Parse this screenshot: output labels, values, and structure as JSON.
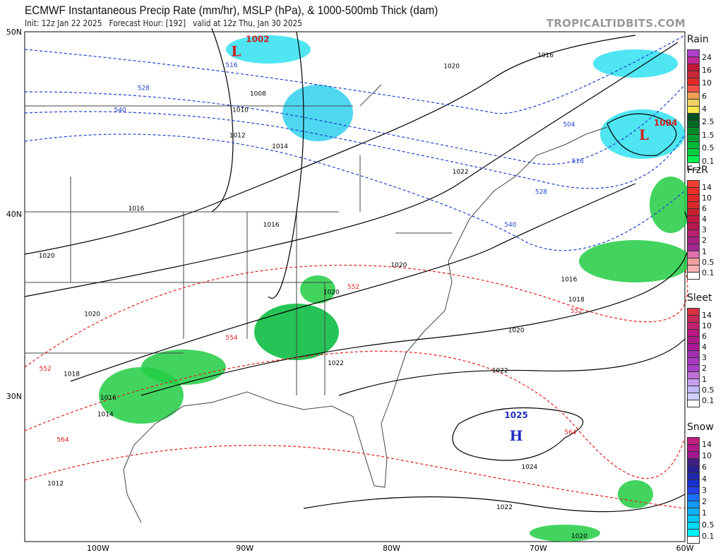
{
  "header": {
    "title": "ECMWF Instantaneous Precip Rate (mm/hr), MSLP (hPa), & 1000-500mb Thick (dam)",
    "subtitle": "Init: 12z Jan 22 2025   Forecast Hour: [192]   valid at 12z Thu, Jan 30 2025",
    "brand": "TROPICALTIDBITS.COM"
  },
  "map": {
    "lon_range": [
      -105,
      -60
    ],
    "lat_range": [
      22,
      50
    ],
    "lon_labels": [
      {
        "lon": -100,
        "text": "100W"
      },
      {
        "lon": -90,
        "text": "90W"
      },
      {
        "lon": -80,
        "text": "80W"
      },
      {
        "lon": -70,
        "text": "70W"
      },
      {
        "lon": -60,
        "text": "60W"
      }
    ],
    "lat_labels": [
      {
        "lat": 50,
        "text": "50N"
      },
      {
        "lat": 40,
        "text": "40N"
      },
      {
        "lat": 30,
        "text": "30N"
      }
    ],
    "pressure_centers": [
      {
        "type": "L",
        "value": "1002",
        "lon": -90.6,
        "lat": 48.9,
        "color": "#d02020"
      },
      {
        "type": "L",
        "value": "1004",
        "lon": -62.8,
        "lat": 44.3,
        "color": "#d02020"
      },
      {
        "type": "H",
        "value": "1025",
        "lon": -71.5,
        "lat": 27.8,
        "color": "#2030c0"
      }
    ],
    "isobar_labels": [
      {
        "text": "1008",
        "lon": -89.1,
        "lat": 46.5
      },
      {
        "text": "1010",
        "lon": -90.3,
        "lat": 45.6
      },
      {
        "text": "1012",
        "lon": -90.5,
        "lat": 44.2
      },
      {
        "text": "1014",
        "lon": -87.6,
        "lat": 43.6
      },
      {
        "text": "1016",
        "lon": -97.4,
        "lat": 40.2
      },
      {
        "text": "1016",
        "lon": -88.2,
        "lat": 39.3
      },
      {
        "text": "1020",
        "lon": -103.5,
        "lat": 37.6
      },
      {
        "text": "1020",
        "lon": -100.4,
        "lat": 34.4
      },
      {
        "text": "1020",
        "lon": -79.5,
        "lat": 37.1
      },
      {
        "text": "1020",
        "lon": -84.1,
        "lat": 35.6
      },
      {
        "text": "1020",
        "lon": -75.9,
        "lat": 48.0
      },
      {
        "text": "1016",
        "lon": -69.5,
        "lat": 48.6
      },
      {
        "text": "1022",
        "lon": -75.3,
        "lat": 42.2
      },
      {
        "text": "1018",
        "lon": -101.8,
        "lat": 31.1
      },
      {
        "text": "1016",
        "lon": -99.3,
        "lat": 29.8
      },
      {
        "text": "1014",
        "lon": -99.5,
        "lat": 28.9
      },
      {
        "text": "1012",
        "lon": -102.9,
        "lat": 25.1
      },
      {
        "text": "1022",
        "lon": -83.8,
        "lat": 31.7
      },
      {
        "text": "1020",
        "lon": -71.5,
        "lat": 33.5
      },
      {
        "text": "1022",
        "lon": -72.6,
        "lat": 31.3
      },
      {
        "text": "1016",
        "lon": -67.9,
        "lat": 36.3
      },
      {
        "text": "1018",
        "lon": -67.4,
        "lat": 35.2
      },
      {
        "text": "1024",
        "lon": -70.6,
        "lat": 26.0
      },
      {
        "text": "1022",
        "lon": -72.3,
        "lat": 23.8
      },
      {
        "text": "1020",
        "lon": -67.2,
        "lat": 22.2
      }
    ],
    "thickness_labels": [
      {
        "text": "516",
        "lon": -90.9,
        "lat": 49.0
      },
      {
        "text": "528",
        "lon": -96.9,
        "lat": 46.8
      },
      {
        "text": "540",
        "lon": -98.5,
        "lat": 45.6
      },
      {
        "text": "504",
        "lon": -67.9,
        "lat": 44.8
      },
      {
        "text": "516",
        "lon": -67.3,
        "lat": 42.8
      },
      {
        "text": "528",
        "lon": -69.8,
        "lat": 41.1
      },
      {
        "text": "540",
        "lon": -71.9,
        "lat": 39.3
      },
      {
        "text": "552",
        "lon": -82.6,
        "lat": 35.9
      },
      {
        "text": "552",
        "lon": -67.4,
        "lat": 35.5
      },
      {
        "text": "552",
        "lon": -103.6,
        "lat": 31.4
      },
      {
        "text": "554",
        "lon": -90.9,
        "lat": 33.1
      },
      {
        "text": "564",
        "lon": -102.4,
        "lat": 27.5
      },
      {
        "text": "564",
        "lon": -67.8,
        "lat": 27.9
      }
    ]
  },
  "legends": [
    {
      "title": "Rain",
      "labels": [
        "24",
        "16",
        "10",
        "6",
        "4",
        "2.5",
        "1.5",
        "0.5",
        "0.1"
      ],
      "colors": [
        "#b040c8",
        "#c02898",
        "#c01838",
        "#c82838",
        "#e02828",
        "#f85048",
        "#f0a050",
        "#f0d060",
        "#f8e850",
        "#005020",
        "#006a24",
        "#008a2a",
        "#00a030",
        "#00b838",
        "#00d040",
        "#00f050",
        "#ffffff"
      ]
    },
    {
      "title": "FrzR",
      "labels": [
        "14",
        "10",
        "6",
        "4",
        "3",
        "2",
        "1",
        "0.5",
        "0.1"
      ],
      "colors": [
        "#f04030",
        "#e83028",
        "#e02828",
        "#d82828",
        "#c82030",
        "#c01840",
        "#b81850",
        "#b82070",
        "#a82080",
        "#a02890",
        "#e070b0",
        "#f0a0a0",
        "#f8b0b0",
        "#ffffff"
      ]
    },
    {
      "title": "Sleet",
      "labels": [
        "14",
        "10",
        "6",
        "4",
        "3",
        "2",
        "1",
        "0.5",
        "0.1"
      ],
      "colors": [
        "#d83040",
        "#c82858",
        "#c02070",
        "#b81880",
        "#b01888",
        "#a81898",
        "#a030b0",
        "#a838c0",
        "#a840c8",
        "#c070d8",
        "#c8a0f0",
        "#c0b8f8",
        "#d0d0ff",
        "#ffffff"
      ]
    },
    {
      "title": "Snow",
      "labels": [
        "14",
        "10",
        "6",
        "4",
        "3",
        "2",
        "1",
        "0.5",
        "0.1"
      ],
      "colors": [
        "#c02080",
        "#b01888",
        "#a01890",
        "#402080",
        "#282090",
        "#2028b0",
        "#1830d0",
        "#2040e8",
        "#1870f8",
        "#1098f8",
        "#10b0f8",
        "#00c8f8",
        "#00d8f8",
        "#00f0f8",
        "#ffffff"
      ]
    }
  ]
}
